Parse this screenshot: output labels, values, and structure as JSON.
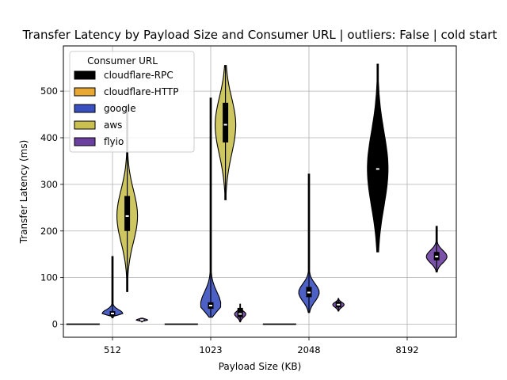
{
  "chart_data": {
    "type": "violin",
    "title": "Transfer Latency by Payload Size and Consumer URL | outliers: False | cold start",
    "xlabel": "Payload Size (KB)",
    "ylabel": "Transfer Latency (ms)",
    "categories": [
      "512",
      "1023",
      "2048",
      "8192"
    ],
    "yticks": [
      0,
      100,
      200,
      300,
      400,
      500
    ],
    "ylim": [
      -28,
      597
    ],
    "grid": true,
    "legend": {
      "title": "Consumer URL",
      "position": "top-left",
      "entries": [
        {
          "name": "cloudflare-RPC",
          "color": "#000000"
        },
        {
          "name": "cloudflare-HTTP",
          "color": "#e8a832"
        },
        {
          "name": "google",
          "color": "#3a4fc0"
        },
        {
          "name": "aws",
          "color": "#c9c050"
        },
        {
          "name": "flyio",
          "color": "#6b3fa0"
        }
      ]
    },
    "series": [
      {
        "name": "cloudflare-RPC",
        "color": "#000000",
        "stats": [
          {
            "category": "512",
            "min": 0,
            "q1": 0,
            "median": 0,
            "q3": 0,
            "max": 0
          },
          {
            "category": "1023",
            "min": 0,
            "q1": 0,
            "median": 0,
            "q3": 0,
            "max": 0
          },
          {
            "category": "2048",
            "min": 0,
            "q1": 0,
            "median": 0,
            "q3": 0,
            "max": 0
          },
          {
            "category": "8192",
            "min": 155,
            "q1": 282,
            "median": 333,
            "q3": 390,
            "max": 558
          }
        ]
      },
      {
        "name": "google",
        "color": "#3a4fc0",
        "stats": [
          {
            "category": "512",
            "min": 14,
            "q1": 18,
            "median": 23,
            "q3": 28,
            "max": 145
          },
          {
            "category": "1023",
            "min": 15,
            "q1": 33,
            "median": 40,
            "q3": 47,
            "max": 485
          },
          {
            "category": "2048",
            "min": 25,
            "q1": 58,
            "median": 68,
            "q3": 80,
            "max": 322
          }
        ]
      },
      {
        "name": "aws",
        "color": "#c9c050",
        "stats": [
          {
            "category": "512",
            "min": 70,
            "q1": 200,
            "median": 232,
            "q3": 275,
            "max": 470
          },
          {
            "category": "1023",
            "min": 267,
            "q1": 390,
            "median": 428,
            "q3": 475,
            "max": 555
          }
        ]
      },
      {
        "name": "flyio",
        "color": "#6b3fa0",
        "stats": [
          {
            "category": "512",
            "min": 5,
            "q1": 7,
            "median": 9,
            "q3": 10,
            "max": 13
          },
          {
            "category": "1023",
            "min": 5,
            "q1": 15,
            "median": 22,
            "q3": 35,
            "max": 43
          },
          {
            "category": "2048",
            "min": 28,
            "q1": 36,
            "median": 42,
            "q3": 48,
            "max": 55
          },
          {
            "category": "8192",
            "min": 112,
            "q1": 137,
            "median": 145,
            "q3": 155,
            "max": 210
          }
        ]
      }
    ]
  }
}
